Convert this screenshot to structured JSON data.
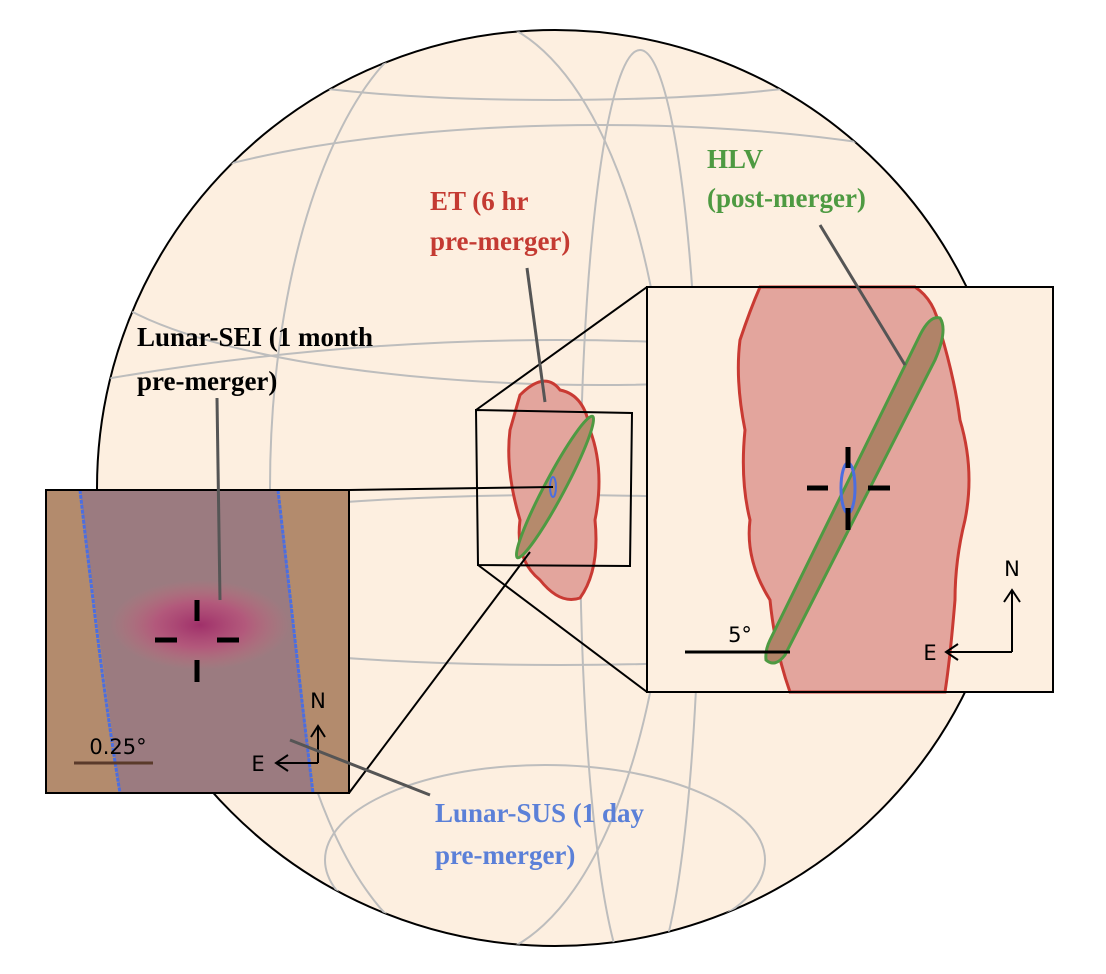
{
  "labels": {
    "et": [
      "ET (6 hr",
      "pre-merger)"
    ],
    "hlv": [
      "HLV",
      "(post-merger)"
    ],
    "lunar_sei": [
      "Lunar-SEI (1 month",
      "pre-merger)"
    ],
    "lunar_sus": [
      "Lunar-SUS (1 day",
      "pre-merger)"
    ]
  },
  "insets": {
    "right": {
      "scale": "5°",
      "north": "N",
      "east": "E"
    },
    "left": {
      "scale": "0.25°",
      "north": "N",
      "east": "E"
    }
  }
}
